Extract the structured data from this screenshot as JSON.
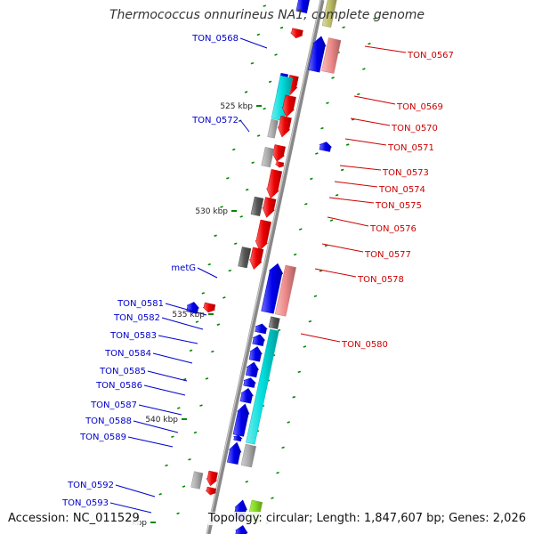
{
  "title": "Thermococcus onnurineus NA1, complete genome",
  "footer": {
    "accession": "Accession: NC_011529",
    "summary": "Topology: circular; Length: 1,847,607 bp; Genes: 2,026"
  },
  "colors": {
    "reverse_strand_label": "#0000cc",
    "forward_strand_label": "#cc0000",
    "backbone": "#888888",
    "tick": "#008800",
    "blue": "#0000ee",
    "red": "#ee0000",
    "cyan": "#00dddd",
    "pink": "#ee8888",
    "gray": "#aaaaaa",
    "darkgray": "#555555",
    "green": "#88dd22",
    "olive": "#bbbb66"
  },
  "ticks": [
    "525 kbp",
    "530 kbp",
    "535 kbp",
    "540 kbp",
    "kbp"
  ],
  "genes": {
    "reverse_strand": [
      "TON_0568",
      "TON_0572",
      "metG",
      "TON_0581",
      "TON_0582",
      "TON_0583",
      "TON_0584",
      "TON_0585",
      "TON_0586",
      "TON_0587",
      "TON_0588",
      "TON_0589",
      "TON_0592",
      "TON_0593"
    ],
    "forward_strand": [
      "TON_0567",
      "TON_0569",
      "TON_0570",
      "TON_0571",
      "TON_0573",
      "TON_0574",
      "TON_0575",
      "TON_0576",
      "TON_0577",
      "TON_0578",
      "TON_0580"
    ]
  }
}
